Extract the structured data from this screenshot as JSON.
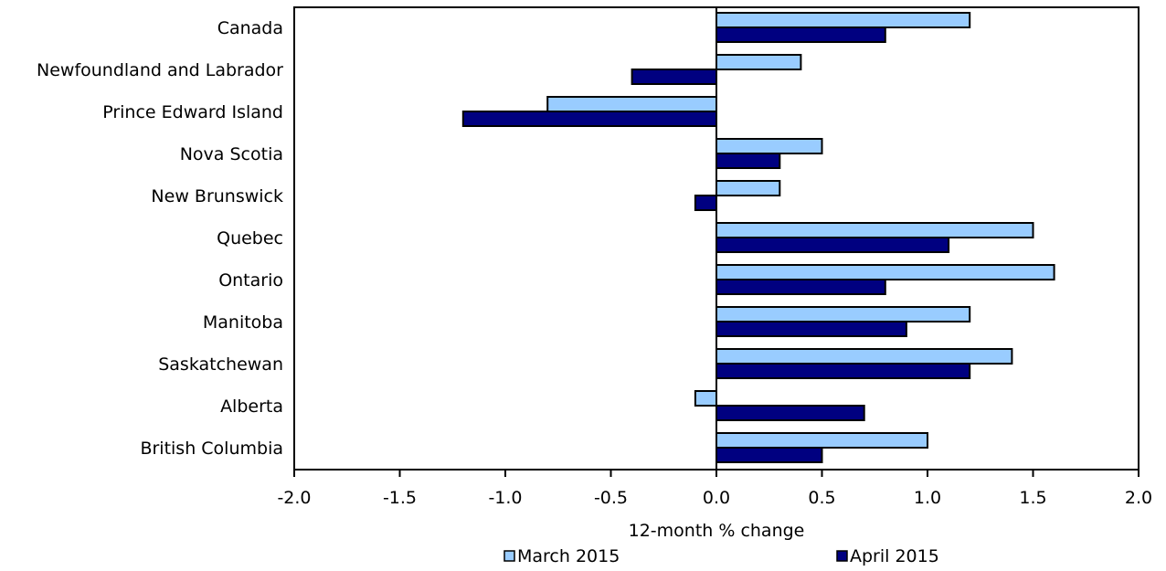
{
  "chart_data": {
    "type": "bar",
    "orientation": "horizontal",
    "categories": [
      "Canada",
      "Newfoundland and Labrador",
      "Prince Edward Island",
      "Nova Scotia",
      "New Brunswick",
      "Quebec",
      "Ontario",
      "Manitoba",
      "Saskatchewan",
      "Alberta",
      "British Columbia"
    ],
    "series": [
      {
        "name": "March 2015",
        "color": "#99ccff",
        "values": [
          1.2,
          0.4,
          -0.8,
          0.5,
          0.3,
          1.5,
          1.6,
          1.2,
          1.4,
          -0.1,
          1.0
        ]
      },
      {
        "name": "April 2015",
        "color": "#000080",
        "values": [
          0.8,
          -0.4,
          -1.2,
          0.3,
          -0.1,
          1.1,
          0.8,
          0.9,
          1.2,
          0.7,
          0.5
        ]
      }
    ],
    "xlabel": "12-month % change",
    "xlim": [
      -2.0,
      2.0
    ],
    "xticks": [
      "-2.0",
      "-1.5",
      "-1.0",
      "-0.5",
      "0.0",
      "0.5",
      "1.0",
      "1.5",
      "2.0"
    ],
    "grid": false,
    "legend_position": "bottom"
  }
}
